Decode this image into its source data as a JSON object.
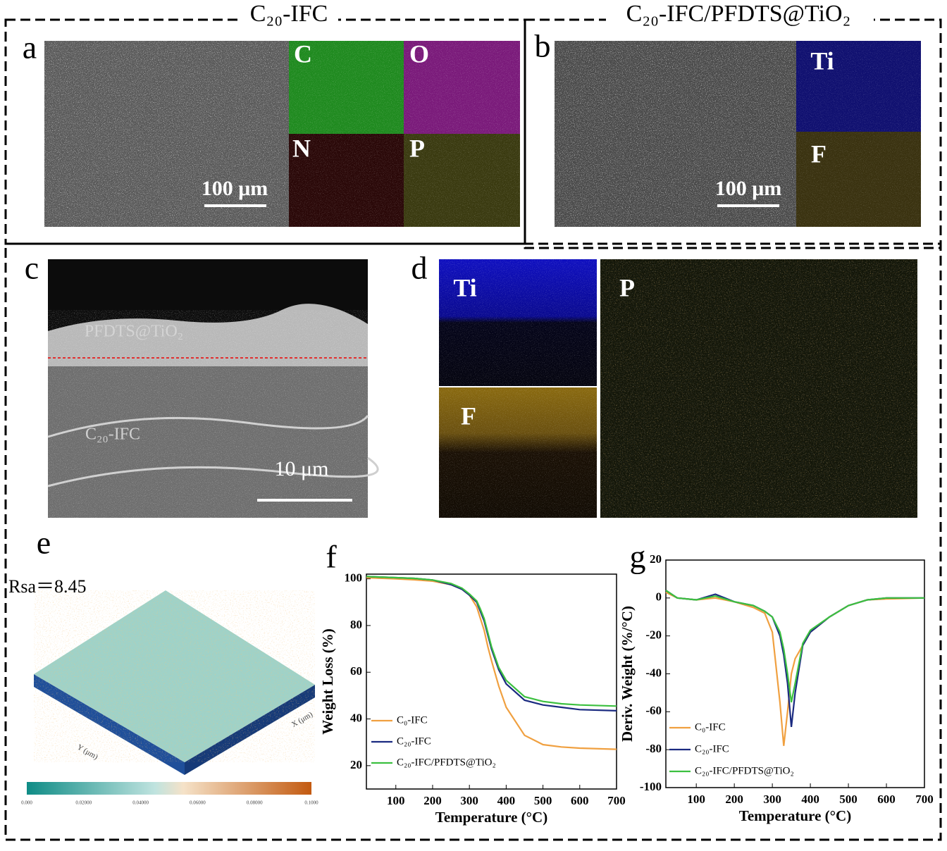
{
  "figure": {
    "headers": [
      "C₂₀-IFC",
      "C₂₀-IFC/PFDTS@TiO₂"
    ],
    "panel_a": {
      "label": "a",
      "maps": [
        "C",
        "O",
        "N",
        "P"
      ],
      "scale": "100 μm"
    },
    "panel_b": {
      "label": "b",
      "maps": [
        "Ti",
        "F"
      ],
      "scale": "100 μm"
    },
    "panel_c": {
      "label": "c",
      "layers": [
        "PFDTS@TiO₂",
        "C₂₀-IFC"
      ],
      "scale": "10 μm"
    },
    "panel_d": {
      "label": "d",
      "maps": [
        "Ti",
        "F",
        "P"
      ]
    },
    "panel_e": {
      "label": "e",
      "roughness": "Rsa＝8.45",
      "axes": [
        "Y (μm)",
        "X (μm)"
      ],
      "colorbar": [
        "0.000",
        "0.02000",
        "0.04000",
        "0.06000",
        "0.08000",
        "0.1000"
      ]
    }
  },
  "chart_data": [
    {
      "type": "line",
      "panel_label": "f",
      "xlabel": "Temperature (°C)",
      "ylabel": "Weight Loss (%)",
      "x": [
        20,
        50,
        100,
        150,
        200,
        250,
        280,
        300,
        320,
        330,
        340,
        350,
        360,
        380,
        400,
        450,
        500,
        550,
        600,
        700
      ],
      "xlim": [
        20,
        700
      ],
      "xticks": [
        100,
        200,
        300,
        400,
        500,
        600,
        700
      ],
      "ylim": [
        10,
        102
      ],
      "yticks": [
        20,
        40,
        60,
        80,
        100
      ],
      "series": [
        {
          "name": "C₀-IFC",
          "color": "#f0a040",
          "values": [
            100.5,
            100.3,
            100,
            99.6,
            99,
            97.5,
            95.5,
            93,
            88,
            83,
            78,
            71,
            65,
            54,
            45,
            33,
            29,
            28,
            27.5,
            27
          ]
        },
        {
          "name": "C₂₀-IFC",
          "color": "#1a2a80",
          "values": [
            101,
            100.8,
            100.5,
            100.2,
            99.5,
            97.5,
            95.5,
            93,
            90,
            86,
            82,
            76,
            70,
            61,
            55,
            48,
            46,
            45,
            44,
            43.5
          ]
        },
        {
          "name": "C₂₀-IFC/PFDTS@TiO₂",
          "color": "#3cc040",
          "values": [
            101,
            100.8,
            100.5,
            100.2,
            99.5,
            98,
            96,
            93.5,
            90.5,
            87,
            83,
            77,
            71,
            62,
            56.5,
            49.5,
            47.5,
            46.5,
            46,
            45.5
          ]
        }
      ]
    },
    {
      "type": "line",
      "panel_label": "g",
      "xlabel": "Temperature (°C)",
      "ylabel": "Deriv. Weight (%/°C)",
      "x": [
        20,
        50,
        100,
        150,
        200,
        250,
        280,
        300,
        320,
        330,
        340,
        350,
        360,
        380,
        400,
        450,
        500,
        550,
        600,
        700
      ],
      "xlim": [
        20,
        700
      ],
      "xticks": [
        100,
        200,
        300,
        400,
        500,
        600,
        700
      ],
      "ylim": [
        -100,
        20
      ],
      "yticks": [
        20,
        0,
        -20,
        -40,
        -60,
        -80,
        -100
      ],
      "series": [
        {
          "name": "C₀-IFC",
          "color": "#f0a040",
          "values": [
            3,
            0,
            -1,
            0,
            -2,
            -5,
            -8,
            -18,
            -55,
            -78,
            -60,
            -40,
            -32,
            -25,
            -18,
            -10,
            -4,
            -1,
            -0.5,
            0
          ]
        },
        {
          "name": "C₂₀-IFC",
          "color": "#1a2a80",
          "values": [
            4,
            0,
            -1,
            2,
            -2,
            -4,
            -7,
            -10,
            -20,
            -30,
            -45,
            -68,
            -50,
            -25,
            -18,
            -10,
            -4,
            -1,
            0,
            0
          ]
        },
        {
          "name": "C₂₀-IFC/PFDTS@TiO₂",
          "color": "#3cc040",
          "values": [
            4,
            0,
            -1,
            1,
            -2,
            -4,
            -7,
            -10,
            -18,
            -27,
            -40,
            -55,
            -45,
            -24,
            -17,
            -10,
            -4,
            -1,
            0,
            0
          ]
        }
      ]
    }
  ]
}
